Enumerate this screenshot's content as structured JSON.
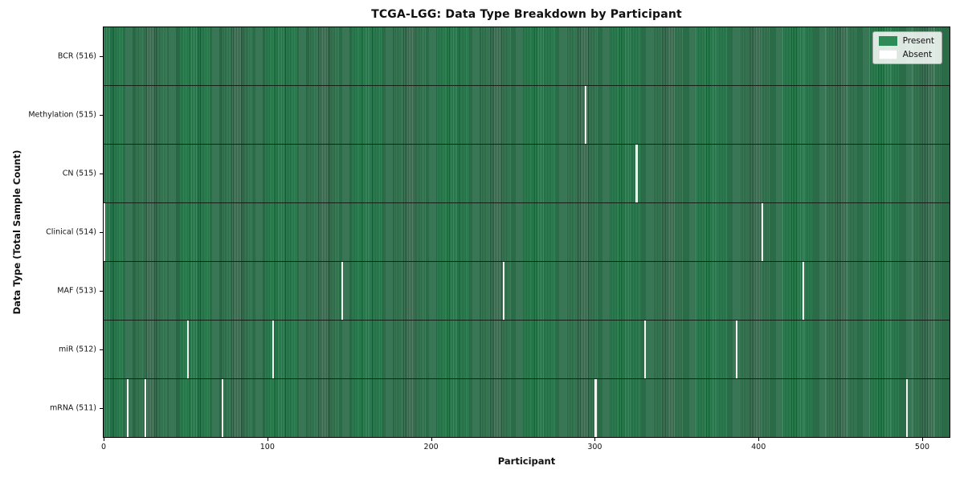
{
  "chart_data": {
    "type": "heatmap",
    "title": "TCGA-LGG: Data Type Breakdown by Participant",
    "xlabel": "Participant",
    "ylabel": "Data Type (Total Sample Count)",
    "x_ticks": [
      0,
      100,
      200,
      300,
      400,
      500
    ],
    "x_range": [
      0,
      517
    ],
    "n_participants": 516,
    "grid": false,
    "legend_position": "upper right",
    "legend": [
      {
        "label": "Present",
        "color": "#2e8b57"
      },
      {
        "label": "Absent",
        "color": "#ffffff"
      }
    ],
    "colors": {
      "present": "#2e8b57",
      "present_edge": "#1f5236",
      "absent": "#f4f5f2",
      "row_separator": "#101a12",
      "legend_bg": "#edf1ed"
    },
    "rows": [
      {
        "id": "bcr",
        "label": "BCR (516)",
        "data_type": "BCR",
        "present_count": 516,
        "absent_participants": []
      },
      {
        "id": "methylation",
        "label": "Methylation (515)",
        "data_type": "Methylation",
        "present_count": 515,
        "absent_participants": [
          294
        ]
      },
      {
        "id": "cn",
        "label": "CN (515)",
        "data_type": "CN",
        "present_count": 515,
        "absent_participants": [
          325
        ]
      },
      {
        "id": "clinical",
        "label": "Clinical (514)",
        "data_type": "Clinical",
        "present_count": 514,
        "absent_participants": [
          0,
          402
        ]
      },
      {
        "id": "maf",
        "label": "MAF (513)",
        "data_type": "MAF",
        "present_count": 513,
        "absent_participants": [
          145,
          244,
          427
        ]
      },
      {
        "id": "mir",
        "label": "miR (512)",
        "data_type": "miR",
        "present_count": 512,
        "absent_participants": [
          51,
          103,
          330,
          386
        ]
      },
      {
        "id": "mrna",
        "label": "mRNA (511)",
        "data_type": "mRNA",
        "present_count": 511,
        "absent_participants": [
          14,
          25,
          72,
          300,
          490
        ]
      }
    ]
  }
}
